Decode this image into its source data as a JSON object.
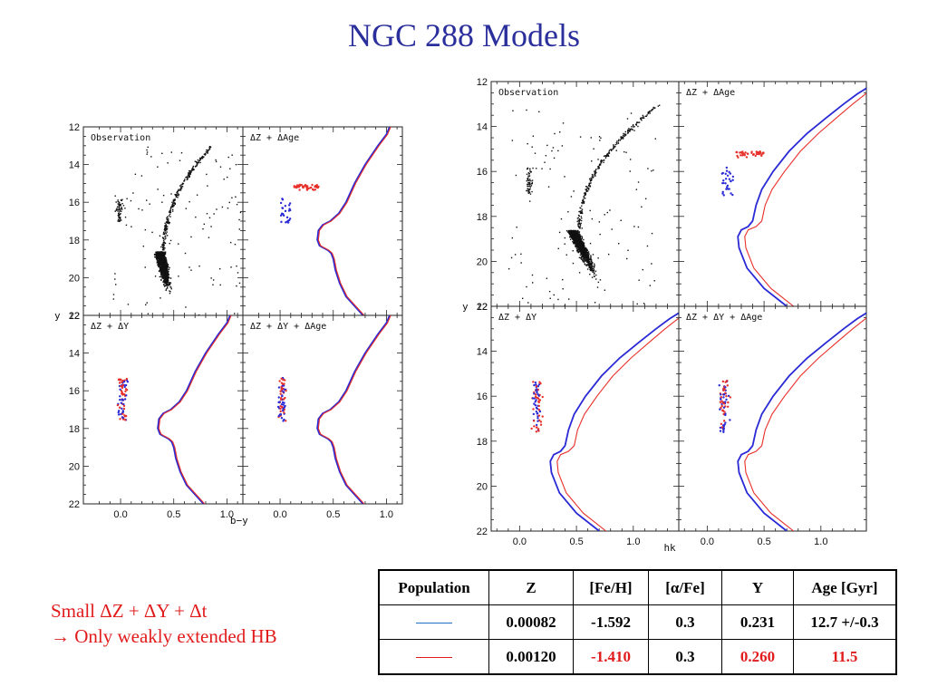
{
  "title": "NGC 288 Models",
  "note": {
    "line1": "Small ΔZ + ΔY + Δt",
    "arrow": "→",
    "line2": "Only weakly extended HB"
  },
  "colors": {
    "blue_model": "#2a2ad6",
    "red_model": "#e8302a",
    "title": "#2b2f9c",
    "note": "#e11b1b"
  },
  "table": {
    "headers": [
      "Population",
      "Z",
      "[Fe/H]",
      "[α/Fe]",
      "Y",
      "Age [Gyr]"
    ],
    "rows": [
      {
        "line_color": "#1f6fc5",
        "z": "0.00082",
        "feh": "-1.592",
        "alpha": "0.3",
        "y": "0.231",
        "age": "12.7 +/-0.3",
        "highlight": []
      },
      {
        "line_color": "#e11b1b",
        "z": "0.00120",
        "feh": "-1.410",
        "alpha": "0.3",
        "y": "0.260",
        "age": "11.5",
        "highlight": [
          "feh",
          "y",
          "age"
        ]
      }
    ]
  },
  "chart_data": [
    {
      "type": "scatter",
      "figure": "left",
      "xlabel": "b−y",
      "ylabel": "y",
      "xlim": [
        -0.35,
        1.15
      ],
      "ylim": [
        22,
        12
      ],
      "x_ticks": [
        "0.0",
        "0.5",
        "1.0"
      ],
      "y_ticks": [
        "12",
        "14",
        "16",
        "18",
        "20",
        "22"
      ],
      "panels": [
        {
          "label": "Observation"
        },
        {
          "label": "ΔZ + ΔAge"
        },
        {
          "label": "ΔZ + ΔY"
        },
        {
          "label": "ΔZ + ΔY + ΔAge"
        }
      ],
      "isochrones": {
        "blue": {
          "x": [
            0.78,
            0.7,
            0.62,
            0.56,
            0.52,
            0.5,
            0.48,
            0.45,
            0.42,
            0.4,
            0.37,
            0.35,
            0.36,
            0.4,
            0.47,
            0.55,
            0.62,
            0.7,
            0.8,
            0.92,
            1.0,
            1.03
          ],
          "y": [
            22.0,
            21.5,
            21.0,
            20.3,
            19.6,
            19.0,
            18.7,
            18.55,
            18.45,
            18.4,
            18.3,
            18.0,
            17.5,
            17.2,
            17.0,
            16.6,
            16.0,
            15.0,
            14.0,
            13.0,
            12.4,
            12.0
          ]
        },
        "red": {
          "x": [
            0.79,
            0.71,
            0.63,
            0.57,
            0.53,
            0.51,
            0.49,
            0.46,
            0.43,
            0.41,
            0.38,
            0.36,
            0.37,
            0.41,
            0.48,
            0.56,
            0.63,
            0.71,
            0.81,
            0.93,
            1.01,
            1.04
          ],
          "y": [
            22.0,
            21.5,
            21.0,
            20.3,
            19.6,
            19.0,
            18.7,
            18.55,
            18.45,
            18.4,
            18.3,
            18.0,
            17.5,
            17.2,
            17.0,
            16.6,
            16.0,
            15.0,
            14.0,
            13.0,
            12.4,
            12.0
          ]
        }
      }
    },
    {
      "type": "scatter",
      "figure": "right",
      "xlabel": "hk",
      "ylabel": "y",
      "xlim": [
        -0.25,
        1.4
      ],
      "ylim": [
        22,
        12
      ],
      "x_ticks": [
        "0.0",
        "0.5",
        "1.0"
      ],
      "y_ticks": [
        "12",
        "14",
        "16",
        "18",
        "20",
        "22"
      ],
      "panels": [
        {
          "label": "Observation"
        },
        {
          "label": "ΔZ + ΔAge"
        },
        {
          "label": "ΔZ + ΔY"
        },
        {
          "label": "ΔZ + ΔY + ΔAge"
        }
      ],
      "isochrones": {
        "blue": {
          "x": [
            0.7,
            0.5,
            0.35,
            0.28,
            0.27,
            0.3,
            0.36,
            0.4,
            0.43,
            0.48,
            0.58,
            0.72,
            0.88,
            1.05,
            1.2,
            1.32,
            1.4
          ],
          "y": [
            22.0,
            21.2,
            20.3,
            19.4,
            18.9,
            18.6,
            18.45,
            18.2,
            17.5,
            16.8,
            16.0,
            15.1,
            14.3,
            13.6,
            13.0,
            12.55,
            12.3
          ]
        },
        "red": {
          "x": [
            0.76,
            0.56,
            0.41,
            0.34,
            0.33,
            0.36,
            0.43,
            0.48,
            0.51,
            0.57,
            0.68,
            0.82,
            0.98,
            1.14,
            1.28,
            1.38,
            1.42
          ],
          "y": [
            22.0,
            21.2,
            20.3,
            19.4,
            18.9,
            18.6,
            18.45,
            18.2,
            17.5,
            16.8,
            16.0,
            15.1,
            14.3,
            13.6,
            13.0,
            12.6,
            12.45
          ]
        }
      }
    }
  ]
}
